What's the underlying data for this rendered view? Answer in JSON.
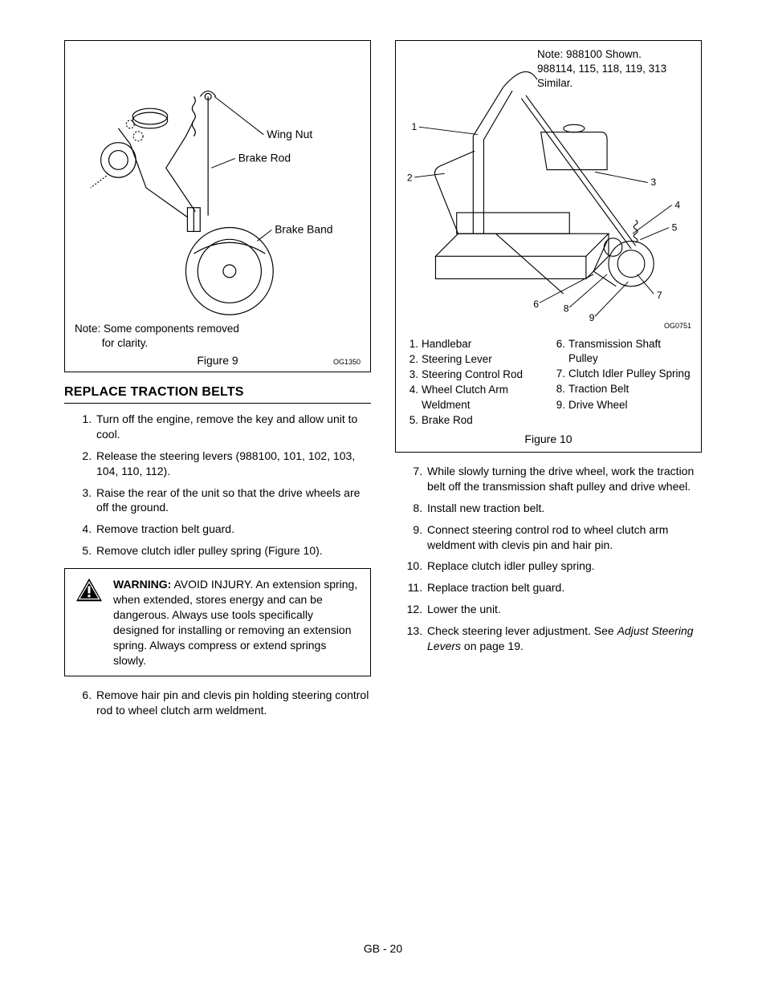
{
  "figure9": {
    "labels": {
      "wing_nut": "Wing Nut",
      "brake_rod": "Brake Rod",
      "brake_band": "Brake Band"
    },
    "note_line1": "Note: Some components removed",
    "note_line2": "for clarity.",
    "caption": "Figure 9",
    "code": "OG1350"
  },
  "section_title": "REPLACE TRACTION BELTS",
  "steps_left_a": [
    "Turn off the engine, remove the key and allow unit to cool.",
    "Release the steering levers (988100, 101, 102, 103, 104, 110, 112).",
    "Raise the rear of the unit so that the drive wheels are off the ground.",
    "Remove traction belt guard.",
    "Remove clutch idler pulley spring (Figure 10)."
  ],
  "warning": {
    "label": "WARNING:",
    "text": " AVOID INJURY. An extension spring, when extended, stores energy and can be dangerous. Always use tools specifically designed for installing or removing an extension spring. Always compress or extend springs slowly."
  },
  "steps_left_b_start": 6,
  "steps_left_b": [
    "Remove hair pin and clevis pin holding steering control rod to wheel clutch arm weldment."
  ],
  "figure10": {
    "top_note_line1": "Note: 988100 Shown.",
    "top_note_line2": "988114, 115, 118, 119, 313 Similar.",
    "caption": "Figure 10",
    "code": "OG0751",
    "legend_left": [
      {
        "n": "1.",
        "t": "Handlebar"
      },
      {
        "n": "2.",
        "t": "Steering Lever"
      },
      {
        "n": "3.",
        "t": "Steering Control Rod"
      },
      {
        "n": "4.",
        "t": "Wheel Clutch Arm Weldment"
      },
      {
        "n": "5.",
        "t": "Brake Rod"
      }
    ],
    "legend_right": [
      {
        "n": "6.",
        "t": "Transmission Shaft Pulley"
      },
      {
        "n": "7.",
        "t": "Clutch Idler Pulley Spring"
      },
      {
        "n": "8.",
        "t": "Traction Belt"
      },
      {
        "n": "9.",
        "t": "Drive Wheel"
      }
    ],
    "callouts": [
      "1",
      "2",
      "3",
      "4",
      "5",
      "6",
      "7",
      "8",
      "9"
    ]
  },
  "steps_right_start": 7,
  "steps_right": [
    "While slowly turning the drive wheel, work the traction belt off the transmission shaft pulley and drive wheel.",
    "Install new traction belt.",
    "Connect steering control rod to wheel clutch arm weldment with clevis pin and hair pin.",
    "Replace clutch idler pulley spring.",
    "Replace traction belt guard.",
    "Lower the unit."
  ],
  "step13_prefix": "Check steering lever adjustment. See ",
  "step13_italic": "Adjust Steering Levers",
  "step13_suffix": " on page 19.",
  "footer": "GB - 20"
}
